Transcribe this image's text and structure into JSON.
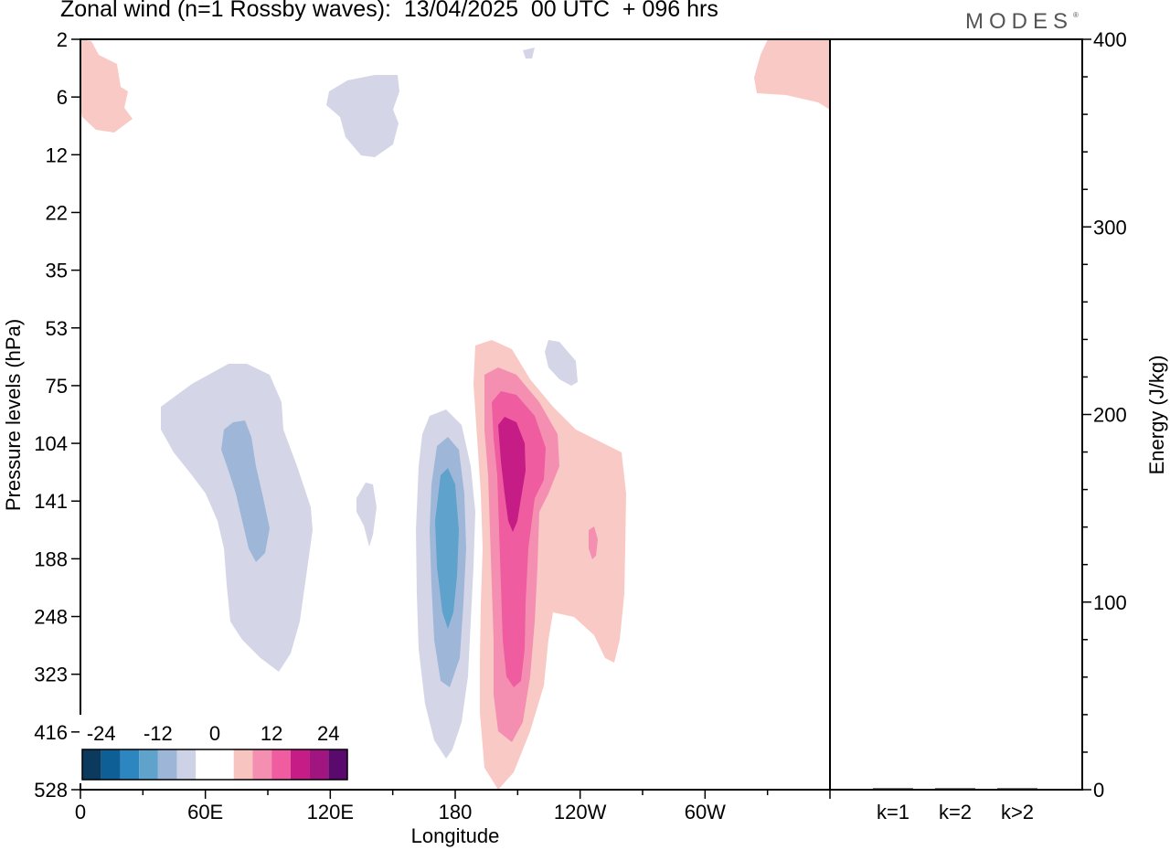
{
  "title": "Zonal wind (n=1 Rossby waves):  13/04/2025  00 UTC  + 096 hrs",
  "logo": "MODES",
  "logo_mark": "®",
  "chart_data": [
    {
      "type": "contour",
      "title": "Zonal wind (n=1 Rossby waves):  13/04/2025  00 UTC  + 096 hrs",
      "xlabel": "Longitude",
      "ylabel": "Pressure levels (hPa)",
      "x_ticks": [
        "0",
        "60E",
        "120E",
        "180",
        "120W",
        "60W"
      ],
      "x_tick_values": [
        0,
        60,
        120,
        180,
        240,
        300
      ],
      "xlim": [
        0,
        360
      ],
      "y_ticks": [
        "2",
        "6",
        "12",
        "22",
        "35",
        "53",
        "75",
        "104",
        "141",
        "188",
        "248",
        "323",
        "416",
        "528"
      ],
      "y_scale": "pressure levels (top 2 hPa, bottom 528 hPa)",
      "colorbar": {
        "labels": [
          "-24",
          "-12",
          "0",
          "12",
          "24"
        ],
        "colors": [
          "#0b3a5e",
          "#0e5f96",
          "#2e86c1",
          "#5fa2cc",
          "#9db6d8",
          "#cdd2e6",
          "#ffffff",
          "#ffffff",
          "#f7c4c0",
          "#f48fb1",
          "#ef5c9f",
          "#c51d85",
          "#a0157f",
          "#5a0a6d"
        ]
      },
      "regions": [
        {
          "lon_center": 10,
          "pressure_center": 6,
          "value_range": [
            0,
            4
          ],
          "sign": "positive"
        },
        {
          "lon_center": 340,
          "pressure_center": 5,
          "value_range": [
            0,
            4
          ],
          "sign": "positive"
        },
        {
          "lon_center": 145,
          "pressure_center": 8,
          "value_range": [
            -4,
            0
          ],
          "sign": "negative"
        },
        {
          "lon_center": 70,
          "pressure_center": 188,
          "value_range": [
            -4,
            0
          ],
          "sign": "negative"
        },
        {
          "lon_center": 80,
          "pressure_center": 141,
          "value_range": [
            -8,
            -4
          ],
          "sign": "negative"
        },
        {
          "lon_center": 175,
          "pressure_center": 188,
          "value_range": [
            -12,
            -8
          ],
          "sign": "negative"
        },
        {
          "lon_center": 200,
          "pressure_center": 104,
          "value_range": [
            12,
            16
          ],
          "sign": "positive"
        },
        {
          "lon_center": 215,
          "pressure_center": 141,
          "value_range": [
            0,
            4
          ],
          "sign": "positive"
        }
      ]
    },
    {
      "type": "bar",
      "categories": [
        "k=1",
        "k=2",
        "k>2"
      ],
      "values": [
        0.5,
        0.2,
        0.3
      ],
      "ylabel": "Energy (J/kg)",
      "ylim": [
        0,
        400
      ],
      "y_ticks": [
        "0",
        "100",
        "200",
        "300",
        "400"
      ]
    }
  ]
}
